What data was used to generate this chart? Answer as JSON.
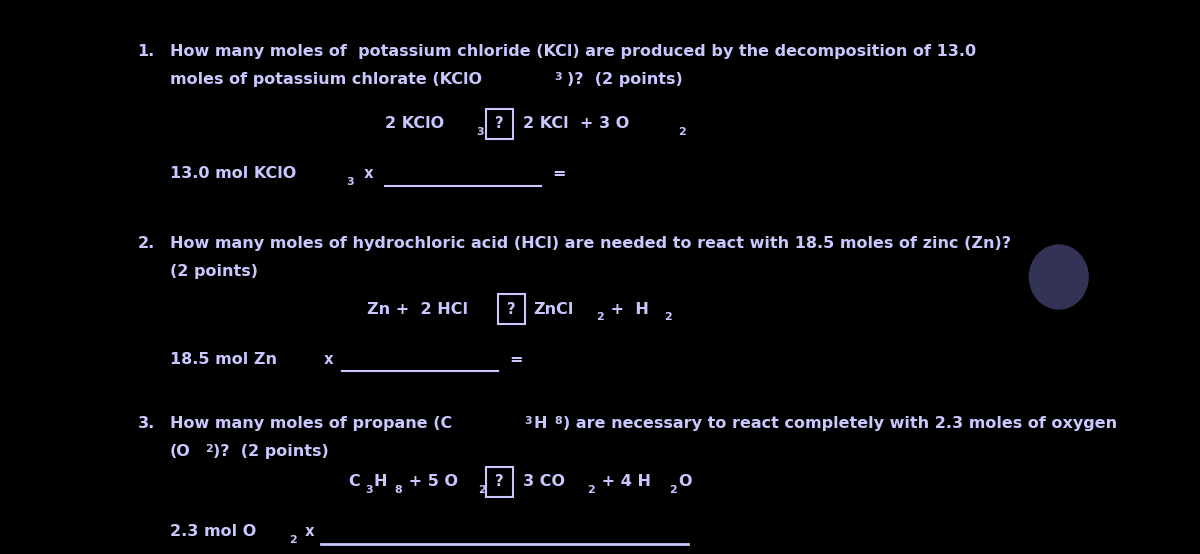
{
  "bg_color": "#000000",
  "text_color": "#c8c8ff",
  "line_color": "#c8c8ff",
  "box_edge_color": "#c8c8ff",
  "figsize": [
    12.0,
    5.54
  ],
  "dpi": 100,
  "q1_line1": "How many moles of  potassium chloride (KCl) are produced by the decomposition of 13.0",
  "q1_line2_a": "moles of potassium chlorate (KClO",
  "q1_line2_b": "3",
  "q1_line2_c": ")?  (2 points)",
  "q2_line1": "How many moles of hydrochloric acid (HCl) are needed to react with 18.5 moles of zinc (Zn)?",
  "q2_line2": "(2 points)",
  "q3_line1_a": "How many moles of propane (C",
  "q3_line1_sub1": "3",
  "q3_line1_b": "H",
  "q3_line1_sub2": "8",
  "q3_line1_c": ") are necessary to react completely with 2.3 moles of oxygen",
  "q3_line2_a": "(O",
  "q3_line2_sub": "2",
  "q3_line2_b": ")?  (2 points)"
}
